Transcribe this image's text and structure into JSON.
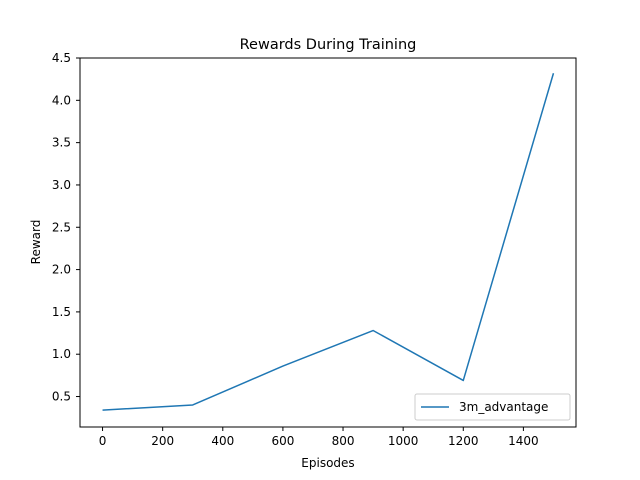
{
  "chart_data": {
    "type": "line",
    "title": "Rewards During Training",
    "xlabel": "Episodes",
    "ylabel": "Reward",
    "xlim": [
      -75,
      1575
    ],
    "ylim": [
      0.14,
      4.5
    ],
    "xticks": [
      0,
      200,
      400,
      600,
      800,
      1000,
      1200,
      1400
    ],
    "yticks": [
      0.5,
      1.0,
      1.5,
      2.0,
      2.5,
      3.0,
      3.5,
      4.0,
      4.5
    ],
    "ytick_labels": [
      "0.5",
      "1.0",
      "1.5",
      "2.0",
      "2.5",
      "3.0",
      "3.5",
      "4.0",
      "4.5"
    ],
    "grid": false,
    "legend_position": "lower-right",
    "series": [
      {
        "name": "3m_advantage",
        "color": "#1f77b4",
        "x": [
          0,
          300,
          600,
          900,
          1200,
          1500
        ],
        "y": [
          0.34,
          0.4,
          0.86,
          1.28,
          0.69,
          4.32
        ]
      }
    ]
  }
}
